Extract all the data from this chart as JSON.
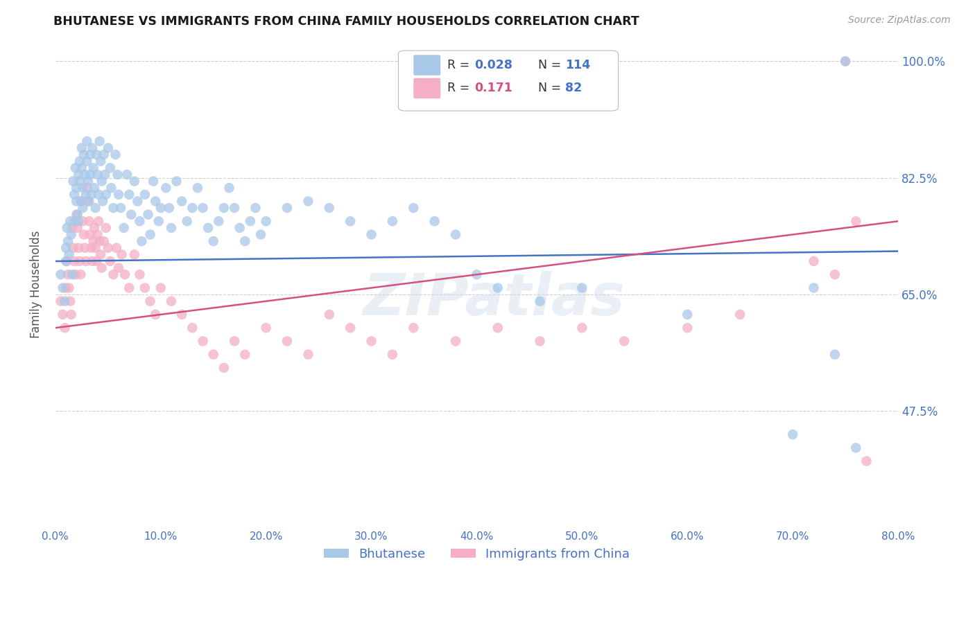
{
  "title": "BHUTANESE VS IMMIGRANTS FROM CHINA FAMILY HOUSEHOLDS CORRELATION CHART",
  "source": "Source: ZipAtlas.com",
  "ylabel": "Family Households",
  "ytick_labels": [
    "100.0%",
    "82.5%",
    "65.0%",
    "47.5%"
  ],
  "ytick_values": [
    1.0,
    0.825,
    0.65,
    0.475
  ],
  "xmin": 0.0,
  "xmax": 0.8,
  "ymin": 0.3,
  "ymax": 1.03,
  "blue_R": 0.028,
  "blue_N": 114,
  "pink_R": 0.171,
  "pink_N": 82,
  "blue_color": "#a8c8e8",
  "pink_color": "#f4afc4",
  "blue_line_color": "#4472c4",
  "pink_line_color": "#d45080",
  "title_color": "#1a1a1a",
  "axis_label_color": "#4472c4",
  "legend_blue_R_color": "#4472c4",
  "legend_pink_R_color": "#d45080",
  "legend_N_color": "#4472c4",
  "watermark": "ZIPatlas",
  "background_color": "#ffffff",
  "grid_color": "#d0d0d0",
  "blue_scatter_x": [
    0.005,
    0.007,
    0.009,
    0.01,
    0.01,
    0.011,
    0.012,
    0.013,
    0.014,
    0.015,
    0.016,
    0.017,
    0.018,
    0.018,
    0.019,
    0.02,
    0.02,
    0.021,
    0.022,
    0.022,
    0.023,
    0.023,
    0.024,
    0.025,
    0.025,
    0.026,
    0.026,
    0.027,
    0.028,
    0.029,
    0.03,
    0.03,
    0.031,
    0.032,
    0.033,
    0.033,
    0.034,
    0.035,
    0.036,
    0.037,
    0.038,
    0.039,
    0.04,
    0.041,
    0.042,
    0.043,
    0.044,
    0.045,
    0.046,
    0.047,
    0.048,
    0.05,
    0.052,
    0.053,
    0.055,
    0.057,
    0.059,
    0.06,
    0.062,
    0.065,
    0.068,
    0.07,
    0.072,
    0.075,
    0.078,
    0.08,
    0.082,
    0.085,
    0.088,
    0.09,
    0.093,
    0.095,
    0.098,
    0.1,
    0.105,
    0.108,
    0.11,
    0.115,
    0.12,
    0.125,
    0.13,
    0.135,
    0.14,
    0.145,
    0.15,
    0.155,
    0.16,
    0.165,
    0.17,
    0.175,
    0.18,
    0.185,
    0.19,
    0.195,
    0.2,
    0.22,
    0.24,
    0.26,
    0.28,
    0.3,
    0.32,
    0.34,
    0.36,
    0.38,
    0.4,
    0.42,
    0.46,
    0.5,
    0.6,
    0.7,
    0.72,
    0.74,
    0.75,
    0.76
  ],
  "blue_scatter_y": [
    0.68,
    0.66,
    0.64,
    0.72,
    0.7,
    0.75,
    0.73,
    0.71,
    0.76,
    0.74,
    0.68,
    0.82,
    0.8,
    0.76,
    0.84,
    0.81,
    0.79,
    0.77,
    0.83,
    0.76,
    0.85,
    0.82,
    0.79,
    0.87,
    0.84,
    0.81,
    0.78,
    0.86,
    0.83,
    0.8,
    0.88,
    0.85,
    0.82,
    0.79,
    0.86,
    0.83,
    0.8,
    0.87,
    0.84,
    0.81,
    0.78,
    0.86,
    0.83,
    0.8,
    0.88,
    0.85,
    0.82,
    0.79,
    0.86,
    0.83,
    0.8,
    0.87,
    0.84,
    0.81,
    0.78,
    0.86,
    0.83,
    0.8,
    0.78,
    0.75,
    0.83,
    0.8,
    0.77,
    0.82,
    0.79,
    0.76,
    0.73,
    0.8,
    0.77,
    0.74,
    0.82,
    0.79,
    0.76,
    0.78,
    0.81,
    0.78,
    0.75,
    0.82,
    0.79,
    0.76,
    0.78,
    0.81,
    0.78,
    0.75,
    0.73,
    0.76,
    0.78,
    0.81,
    0.78,
    0.75,
    0.73,
    0.76,
    0.78,
    0.74,
    0.76,
    0.78,
    0.79,
    0.78,
    0.76,
    0.74,
    0.76,
    0.78,
    0.76,
    0.74,
    0.68,
    0.66,
    0.64,
    0.66,
    0.62,
    0.44,
    0.66,
    0.56,
    1.0,
    0.42
  ],
  "pink_scatter_x": [
    0.005,
    0.007,
    0.009,
    0.01,
    0.011,
    0.012,
    0.013,
    0.014,
    0.015,
    0.016,
    0.017,
    0.018,
    0.019,
    0.02,
    0.021,
    0.022,
    0.023,
    0.024,
    0.025,
    0.026,
    0.027,
    0.028,
    0.029,
    0.03,
    0.031,
    0.032,
    0.033,
    0.034,
    0.035,
    0.036,
    0.037,
    0.038,
    0.039,
    0.04,
    0.041,
    0.042,
    0.043,
    0.044,
    0.046,
    0.048,
    0.05,
    0.052,
    0.055,
    0.058,
    0.06,
    0.063,
    0.066,
    0.07,
    0.075,
    0.08,
    0.085,
    0.09,
    0.095,
    0.1,
    0.11,
    0.12,
    0.13,
    0.14,
    0.15,
    0.16,
    0.17,
    0.18,
    0.2,
    0.22,
    0.24,
    0.26,
    0.28,
    0.3,
    0.32,
    0.34,
    0.38,
    0.42,
    0.46,
    0.5,
    0.54,
    0.6,
    0.65,
    0.72,
    0.74,
    0.75,
    0.76,
    0.77
  ],
  "pink_scatter_y": [
    0.64,
    0.62,
    0.6,
    0.66,
    0.7,
    0.68,
    0.66,
    0.64,
    0.62,
    0.75,
    0.72,
    0.7,
    0.68,
    0.77,
    0.75,
    0.72,
    0.7,
    0.68,
    0.79,
    0.76,
    0.74,
    0.72,
    0.7,
    0.81,
    0.79,
    0.76,
    0.74,
    0.72,
    0.7,
    0.73,
    0.75,
    0.72,
    0.7,
    0.74,
    0.76,
    0.73,
    0.71,
    0.69,
    0.73,
    0.75,
    0.72,
    0.7,
    0.68,
    0.72,
    0.69,
    0.71,
    0.68,
    0.66,
    0.71,
    0.68,
    0.66,
    0.64,
    0.62,
    0.66,
    0.64,
    0.62,
    0.6,
    0.58,
    0.56,
    0.54,
    0.58,
    0.56,
    0.6,
    0.58,
    0.56,
    0.62,
    0.6,
    0.58,
    0.56,
    0.6,
    0.58,
    0.6,
    0.58,
    0.6,
    0.58,
    0.6,
    0.62,
    0.7,
    0.68,
    1.0,
    0.76,
    0.4
  ]
}
